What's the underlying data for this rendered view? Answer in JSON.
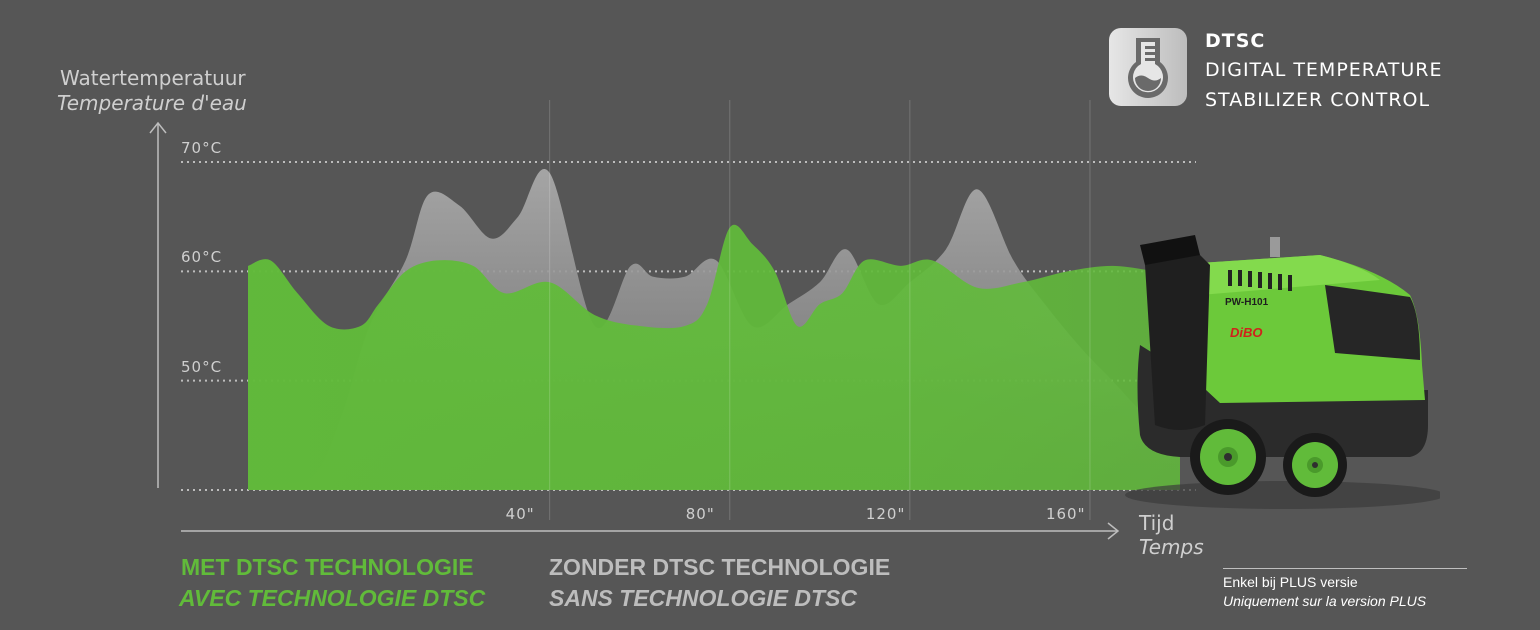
{
  "brand": {
    "name": "DTSC",
    "line1": "DIGITAL TEMPERATURE",
    "line2": "STABILIZER CONTROL",
    "icon": "flask-thermometer-icon"
  },
  "axes": {
    "y_title_nl": "Watertemperatuur",
    "y_title_fr": "Temperature d'eau",
    "x_title_nl": "Tijd",
    "x_title_fr": "Temps"
  },
  "legend": {
    "with_nl": "MET DTSC TECHNOLOGIE",
    "with_fr": "AVEC TECHNOLOGIE DTSC",
    "without_nl": "ZONDER DTSC TECHNOLOGIE",
    "without_fr": "SANS TECHNOLOGIE DTSC"
  },
  "note": {
    "nl": "Enkel bij PLUS versie",
    "fr": "Uniquement sur la version PLUS"
  },
  "machine": {
    "model": "PW-H101",
    "brand": "DiBO"
  },
  "colors": {
    "background": "#565656",
    "with_series": "#61bb3a",
    "without_series": "#a9a9a9",
    "grid": "#bdbdbd"
  },
  "chart_data": {
    "type": "area",
    "xlabel": "Tijd / Temps",
    "ylabel": "Watertemperatuur / Temperature d'eau",
    "y_ticks": [
      "50°C",
      "60°C",
      "70°C"
    ],
    "y_tick_values": [
      50,
      60,
      70
    ],
    "x_ticks": [
      "40\"",
      "80\"",
      "120\"",
      "160\""
    ],
    "x_tick_values": [
      40,
      80,
      120,
      160
    ],
    "xlim": [
      -27,
      180
    ],
    "ylim": [
      40,
      70
    ],
    "grid": "horizontal dotted at 50, 60, 70 and baseline",
    "series": [
      {
        "name": "ZONDER DTSC TECHNOLOGIE",
        "x": [
          -27,
          -20,
          -12,
          -6,
          0,
          8,
          13,
          20,
          27,
          33,
          40,
          50,
          58,
          63,
          70,
          77,
          85,
          93,
          100,
          106,
          113,
          120,
          128,
          135,
          143,
          150,
          158,
          165,
          172,
          180
        ],
        "y": [
          40.5,
          40.5,
          41.5,
          47,
          55,
          61,
          67,
          66,
          63,
          65,
          69,
          55,
          60.5,
          59.5,
          59.5,
          61,
          55,
          57,
          59,
          62,
          57,
          59,
          62,
          67.5,
          61,
          57,
          53,
          50,
          47,
          45
        ]
      },
      {
        "name": "MET DTSC TECHNOLOGIE",
        "x": [
          -27,
          -22,
          -16,
          -9,
          -2,
          2,
          8,
          15,
          23,
          30,
          40,
          50,
          60,
          70,
          75,
          80,
          85,
          90,
          95,
          100,
          105,
          110,
          118,
          125,
          135,
          145,
          155,
          165,
          175,
          180
        ],
        "y": [
          60.5,
          61,
          58,
          55,
          55,
          57,
          60,
          61,
          60.5,
          58,
          59,
          56,
          55,
          55,
          57,
          64,
          62.5,
          60,
          55,
          57,
          58,
          61,
          60.5,
          61,
          58.5,
          59,
          60,
          60.5,
          60,
          60
        ]
      }
    ]
  }
}
